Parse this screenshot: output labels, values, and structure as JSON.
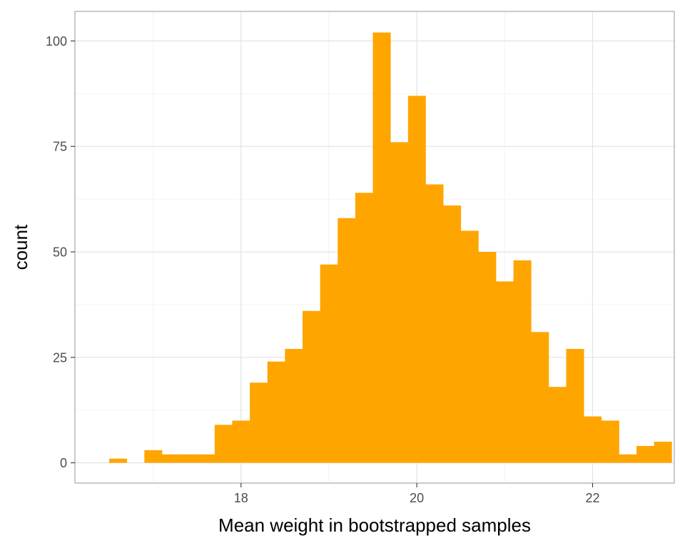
{
  "chart_data": {
    "type": "bar",
    "subtype": "histogram",
    "xlabel": "Mean weight in bootstrapped samples",
    "ylabel": "count",
    "xlim": [
      16.11,
      22.93
    ],
    "ylim": [
      -4.8,
      107.0
    ],
    "x_ticks": [
      18,
      20,
      22
    ],
    "y_ticks": [
      0,
      25,
      50,
      75,
      100
    ],
    "grid": true,
    "bar_color": "#FFA500",
    "bin_width": 0.2,
    "bins": [
      {
        "x0": 16.5,
        "x1": 16.7,
        "count": 1
      },
      {
        "x0": 16.7,
        "x1": 16.9,
        "count": 0
      },
      {
        "x0": 16.9,
        "x1": 17.1,
        "count": 3
      },
      {
        "x0": 17.1,
        "x1": 17.3,
        "count": 2
      },
      {
        "x0": 17.3,
        "x1": 17.5,
        "count": 2
      },
      {
        "x0": 17.5,
        "x1": 17.7,
        "count": 2
      },
      {
        "x0": 17.7,
        "x1": 17.9,
        "count": 9
      },
      {
        "x0": 17.9,
        "x1": 18.1,
        "count": 10
      },
      {
        "x0": 18.1,
        "x1": 18.3,
        "count": 19
      },
      {
        "x0": 18.3,
        "x1": 18.5,
        "count": 24
      },
      {
        "x0": 18.5,
        "x1": 18.7,
        "count": 27
      },
      {
        "x0": 18.7,
        "x1": 18.9,
        "count": 36
      },
      {
        "x0": 18.9,
        "x1": 19.1,
        "count": 47
      },
      {
        "x0": 19.1,
        "x1": 19.3,
        "count": 58
      },
      {
        "x0": 19.3,
        "x1": 19.5,
        "count": 64
      },
      {
        "x0": 19.5,
        "x1": 19.7,
        "count": 102
      },
      {
        "x0": 19.7,
        "x1": 19.9,
        "count": 76
      },
      {
        "x0": 19.9,
        "x1": 20.1,
        "count": 87
      },
      {
        "x0": 20.1,
        "x1": 20.3,
        "count": 66
      },
      {
        "x0": 20.3,
        "x1": 20.5,
        "count": 61
      },
      {
        "x0": 20.5,
        "x1": 20.7,
        "count": 55
      },
      {
        "x0": 20.7,
        "x1": 20.9,
        "count": 50
      },
      {
        "x0": 20.9,
        "x1": 21.1,
        "count": 43
      },
      {
        "x0": 21.1,
        "x1": 21.3,
        "count": 48
      },
      {
        "x0": 21.3,
        "x1": 21.5,
        "count": 31
      },
      {
        "x0": 21.5,
        "x1": 21.7,
        "count": 18
      },
      {
        "x0": 21.7,
        "x1": 21.9,
        "count": 27
      },
      {
        "x0": 21.9,
        "x1": 22.1,
        "count": 11
      },
      {
        "x0": 22.1,
        "x1": 22.3,
        "count": 10
      },
      {
        "x0": 22.3,
        "x1": 22.5,
        "count": 2
      },
      {
        "x0": 22.5,
        "x1": 22.7,
        "count": 4
      },
      {
        "x0": 22.7,
        "x1": 22.9,
        "count": 5
      }
    ]
  }
}
